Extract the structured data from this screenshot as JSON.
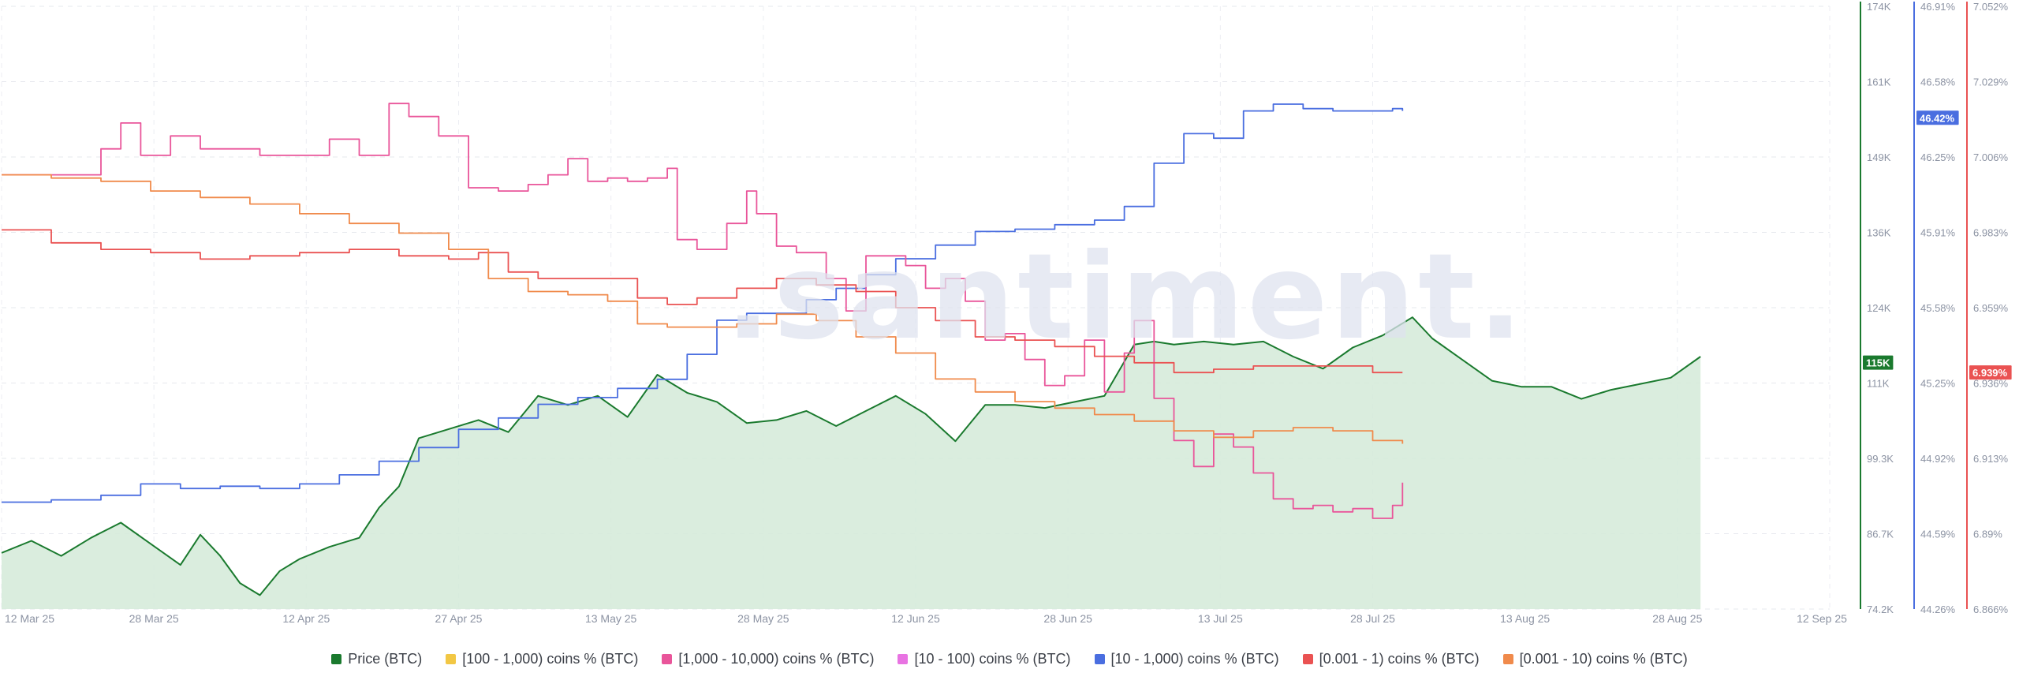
{
  "watermark": ".santiment.",
  "chart_data": {
    "type": "line",
    "title": "",
    "x_labels": [
      "12 Mar 25",
      "28 Mar 25",
      "12 Apr 25",
      "27 Apr 25",
      "13 May 25",
      "28 May 25",
      "12 Jun 25",
      "28 Jun 25",
      "13 Jul 25",
      "28 Jul 25",
      "13 Aug 25",
      "28 Aug 25",
      "12 Sep 25"
    ],
    "x_range": [
      0,
      184
    ],
    "axes": {
      "price": {
        "min": 74.2,
        "max": 174,
        "ticks": [
          "174K",
          "161K",
          "149K",
          "136K",
          "124K",
          "111K",
          "99.3K",
          "86.7K",
          "74.2K"
        ],
        "current_label": "115K",
        "current_value": 115,
        "color": "#1a7a2e"
      },
      "blue": {
        "min": 44.26,
        "max": 46.91,
        "ticks": [
          "46.91%",
          "46.58%",
          "46.25%",
          "45.91%",
          "45.58%",
          "45.25%",
          "44.92%",
          "44.59%",
          "44.26%"
        ],
        "current_label": "46.42%",
        "current_value": 46.42,
        "color": "#4a6ee0"
      },
      "red": {
        "min": 6.866,
        "max": 7.052,
        "ticks": [
          "7.052%",
          "7.029%",
          "7.006%",
          "6.983%",
          "6.959%",
          "6.936%",
          "6.913%",
          "6.89%",
          "6.866%"
        ],
        "current_label": "6.939%",
        "current_value": 6.939,
        "color": "#ea5252"
      }
    },
    "series": [
      {
        "name": "Price (BTC)",
        "color": "#1a7a2e",
        "axis": "price",
        "area": true,
        "points": [
          [
            0,
            83.5
          ],
          [
            3,
            85.5
          ],
          [
            6,
            83
          ],
          [
            9,
            86
          ],
          [
            12,
            88.5
          ],
          [
            15,
            85
          ],
          [
            18,
            81.5
          ],
          [
            20,
            86.5
          ],
          [
            22,
            83
          ],
          [
            24,
            78.5
          ],
          [
            26,
            76.5
          ],
          [
            28,
            80.5
          ],
          [
            30,
            82.5
          ],
          [
            33,
            84.5
          ],
          [
            36,
            86
          ],
          [
            38,
            91
          ],
          [
            40,
            94.5
          ],
          [
            42,
            102.5
          ],
          [
            45,
            104
          ],
          [
            48,
            105.5
          ],
          [
            51,
            103.5
          ],
          [
            54,
            109.5
          ],
          [
            57,
            108
          ],
          [
            60,
            109.5
          ],
          [
            63,
            106
          ],
          [
            66,
            113
          ],
          [
            69,
            110
          ],
          [
            72,
            108.5
          ],
          [
            75,
            105
          ],
          [
            78,
            105.5
          ],
          [
            81,
            107
          ],
          [
            84,
            104.5
          ],
          [
            87,
            107
          ],
          [
            90,
            109.5
          ],
          [
            93,
            106.5
          ],
          [
            96,
            102
          ],
          [
            99,
            108
          ],
          [
            102,
            108
          ],
          [
            105,
            107.5
          ],
          [
            108,
            108.5
          ],
          [
            111,
            109.5
          ],
          [
            114,
            118
          ],
          [
            116,
            118.5
          ],
          [
            118,
            118
          ],
          [
            121,
            118.5
          ],
          [
            124,
            118
          ],
          [
            127,
            118.5
          ],
          [
            130,
            116
          ],
          [
            133,
            114
          ],
          [
            136,
            117.5
          ],
          [
            139,
            119.5
          ],
          [
            142,
            122.5
          ],
          [
            144,
            119
          ],
          [
            147,
            115.5
          ],
          [
            150,
            112
          ],
          [
            153,
            111
          ],
          [
            156,
            111
          ],
          [
            159,
            109
          ],
          [
            162,
            110.5
          ],
          [
            165,
            111.5
          ],
          [
            168,
            112.5
          ],
          [
            171,
            116
          ]
        ]
      },
      {
        "name": "[10 - 1,000) coins % (BTC)",
        "color": "#4a6ee0",
        "axis": "blue",
        "points": [
          [
            0,
            44.73
          ],
          [
            5,
            44.74
          ],
          [
            10,
            44.76
          ],
          [
            14,
            44.81
          ],
          [
            18,
            44.79
          ],
          [
            22,
            44.8
          ],
          [
            26,
            44.79
          ],
          [
            30,
            44.81
          ],
          [
            34,
            44.85
          ],
          [
            38,
            44.91
          ],
          [
            42,
            44.97
          ],
          [
            46,
            45.05
          ],
          [
            50,
            45.1
          ],
          [
            54,
            45.16
          ],
          [
            58,
            45.19
          ],
          [
            62,
            45.23
          ],
          [
            66,
            45.27
          ],
          [
            69,
            45.38
          ],
          [
            72,
            45.53
          ],
          [
            75,
            45.56
          ],
          [
            78,
            45.56
          ],
          [
            81,
            45.62
          ],
          [
            84,
            45.67
          ],
          [
            87,
            45.73
          ],
          [
            90,
            45.8
          ],
          [
            94,
            45.86
          ],
          [
            98,
            45.92
          ],
          [
            102,
            45.93
          ],
          [
            106,
            45.95
          ],
          [
            110,
            45.97
          ],
          [
            113,
            46.03
          ],
          [
            116,
            46.22
          ],
          [
            119,
            46.35
          ],
          [
            122,
            46.33
          ],
          [
            125,
            46.45
          ],
          [
            128,
            46.48
          ],
          [
            131,
            46.46
          ],
          [
            134,
            46.45
          ],
          [
            137,
            46.45
          ],
          [
            140,
            46.46
          ],
          [
            141,
            46.45
          ]
        ]
      },
      {
        "name": "[1,000 - 10,000) coins % (BTC)",
        "color": "#e9559a",
        "axis": "red",
        "points": [
          [
            0,
            7.0
          ],
          [
            8,
            7.0
          ],
          [
            10,
            7.008
          ],
          [
            12,
            7.016
          ],
          [
            14,
            7.006
          ],
          [
            17,
            7.012
          ],
          [
            20,
            7.008
          ],
          [
            23,
            7.008
          ],
          [
            26,
            7.006
          ],
          [
            30,
            7.006
          ],
          [
            33,
            7.011
          ],
          [
            36,
            7.006
          ],
          [
            39,
            7.022
          ],
          [
            41,
            7.018
          ],
          [
            44,
            7.012
          ],
          [
            47,
            6.996
          ],
          [
            50,
            6.995
          ],
          [
            53,
            6.997
          ],
          [
            55,
            7.0
          ],
          [
            57,
            7.005
          ],
          [
            59,
            6.998
          ],
          [
            61,
            6.999
          ],
          [
            63,
            6.998
          ],
          [
            65,
            6.999
          ],
          [
            67,
            7.002
          ],
          [
            68,
            6.98
          ],
          [
            70,
            6.977
          ],
          [
            73,
            6.985
          ],
          [
            75,
            6.995
          ],
          [
            76,
            6.988
          ],
          [
            78,
            6.978
          ],
          [
            80,
            6.976
          ],
          [
            83,
            6.968
          ],
          [
            85,
            6.958
          ],
          [
            87,
            6.975
          ],
          [
            89,
            6.975
          ],
          [
            91,
            6.972
          ],
          [
            93,
            6.965
          ],
          [
            95,
            6.968
          ],
          [
            97,
            6.961
          ],
          [
            99,
            6.949
          ],
          [
            101,
            6.951
          ],
          [
            103,
            6.943
          ],
          [
            105,
            6.935
          ],
          [
            107,
            6.938
          ],
          [
            109,
            6.949
          ],
          [
            111,
            6.933
          ],
          [
            113,
            6.945
          ],
          [
            114,
            6.955
          ],
          [
            116,
            6.931
          ],
          [
            118,
            6.918
          ],
          [
            120,
            6.91
          ],
          [
            122,
            6.92
          ],
          [
            124,
            6.916
          ],
          [
            126,
            6.908
          ],
          [
            128,
            6.9
          ],
          [
            130,
            6.897
          ],
          [
            132,
            6.898
          ],
          [
            134,
            6.896
          ],
          [
            136,
            6.897
          ],
          [
            138,
            6.894
          ],
          [
            140,
            6.898
          ],
          [
            141,
            6.905
          ]
        ]
      },
      {
        "name": "[0.001 - 1) coins % (BTC)",
        "color": "#ea5252",
        "axis": "red",
        "points": [
          [
            0,
            6.983
          ],
          [
            5,
            6.979
          ],
          [
            10,
            6.977
          ],
          [
            15,
            6.976
          ],
          [
            20,
            6.974
          ],
          [
            25,
            6.975
          ],
          [
            30,
            6.976
          ],
          [
            35,
            6.977
          ],
          [
            40,
            6.975
          ],
          [
            45,
            6.974
          ],
          [
            48,
            6.976
          ],
          [
            51,
            6.97
          ],
          [
            54,
            6.968
          ],
          [
            58,
            6.968
          ],
          [
            62,
            6.968
          ],
          [
            64,
            6.962
          ],
          [
            67,
            6.96
          ],
          [
            70,
            6.962
          ],
          [
            74,
            6.965
          ],
          [
            78,
            6.968
          ],
          [
            82,
            6.966
          ],
          [
            86,
            6.964
          ],
          [
            90,
            6.959
          ],
          [
            94,
            6.955
          ],
          [
            98,
            6.95
          ],
          [
            102,
            6.949
          ],
          [
            106,
            6.947
          ],
          [
            110,
            6.944
          ],
          [
            114,
            6.942
          ],
          [
            118,
            6.939
          ],
          [
            122,
            6.94
          ],
          [
            126,
            6.941
          ],
          [
            130,
            6.941
          ],
          [
            134,
            6.941
          ],
          [
            138,
            6.939
          ],
          [
            141,
            6.939
          ]
        ]
      },
      {
        "name": "[0.001 - 10) coins % (BTC)",
        "color": "#f08a4b",
        "axis": "red",
        "points": [
          [
            0,
            7.0
          ],
          [
            5,
            6.999
          ],
          [
            10,
            6.998
          ],
          [
            15,
            6.995
          ],
          [
            20,
            6.993
          ],
          [
            25,
            6.991
          ],
          [
            30,
            6.988
          ],
          [
            35,
            6.985
          ],
          [
            40,
            6.982
          ],
          [
            45,
            6.977
          ],
          [
            49,
            6.968
          ],
          [
            53,
            6.964
          ],
          [
            57,
            6.963
          ],
          [
            61,
            6.961
          ],
          [
            64,
            6.954
          ],
          [
            67,
            6.953
          ],
          [
            70,
            6.953
          ],
          [
            74,
            6.954
          ],
          [
            78,
            6.957
          ],
          [
            82,
            6.955
          ],
          [
            86,
            6.95
          ],
          [
            90,
            6.945
          ],
          [
            94,
            6.937
          ],
          [
            98,
            6.933
          ],
          [
            102,
            6.93
          ],
          [
            106,
            6.928
          ],
          [
            110,
            6.926
          ],
          [
            114,
            6.924
          ],
          [
            118,
            6.921
          ],
          [
            122,
            6.919
          ],
          [
            126,
            6.921
          ],
          [
            130,
            6.922
          ],
          [
            134,
            6.921
          ],
          [
            138,
            6.918
          ],
          [
            141,
            6.917
          ]
        ]
      }
    ],
    "legend": [
      {
        "label": "Price (BTC)",
        "color": "#1a7a2e"
      },
      {
        "label": "[100 - 1,000) coins % (BTC)",
        "color": "#f2c744"
      },
      {
        "label": "[1,000 - 10,000) coins % (BTC)",
        "color": "#e9559a"
      },
      {
        "label": "[10 - 100) coins % (BTC)",
        "color": "#e873e2"
      },
      {
        "label": "[10 - 1,000) coins % (BTC)",
        "color": "#4a6ee0"
      },
      {
        "label": "[0.001 - 1) coins % (BTC)",
        "color": "#ea5252"
      },
      {
        "label": "[0.001 - 10) coins % (BTC)",
        "color": "#f08a4b"
      }
    ],
    "grid": true
  }
}
